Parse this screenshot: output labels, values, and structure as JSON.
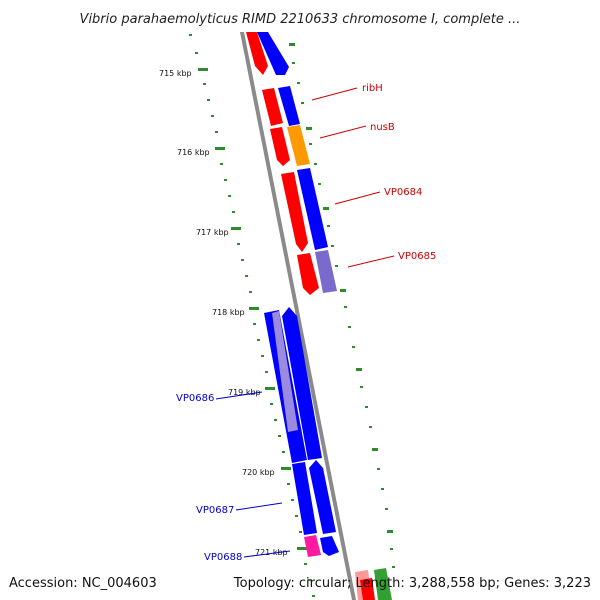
{
  "title": "Vibrio parahaemolyticus RIMD 2210633 chromosome I, complete ...",
  "footer": {
    "accession": "Accession: NC_004603",
    "stats": "Topology: circular; Length: 3,288,558 bp; Genes: 3,223"
  },
  "ticks": [
    "715 kbp",
    "716 kbp",
    "717 kbp",
    "718 kbp",
    "719 kbp",
    "720 kbp",
    "721 kbp"
  ],
  "gene_labels": [
    {
      "name": "ribH",
      "color": "#cc0000"
    },
    {
      "name": "nusB",
      "color": "#cc0000"
    },
    {
      "name": "VP0684",
      "color": "#cc0000"
    },
    {
      "name": "VP0685",
      "color": "#cc0000"
    },
    {
      "name": "VP0686",
      "color": "#0000cc"
    },
    {
      "name": "VP0687",
      "color": "#0000cc"
    },
    {
      "name": "VP0688",
      "color": "#0000cc"
    }
  ],
  "colors": {
    "backbone": "#8a8a8a",
    "tick_dots": "#2e8b2e",
    "cds_red": "#ff0000",
    "cds_blue": "#0000ff",
    "cds_orange": "#ff9900",
    "cds_lavender": "#7a6acc",
    "cds_magenta": "#ff1aa0",
    "cds_green": "#33a033"
  }
}
